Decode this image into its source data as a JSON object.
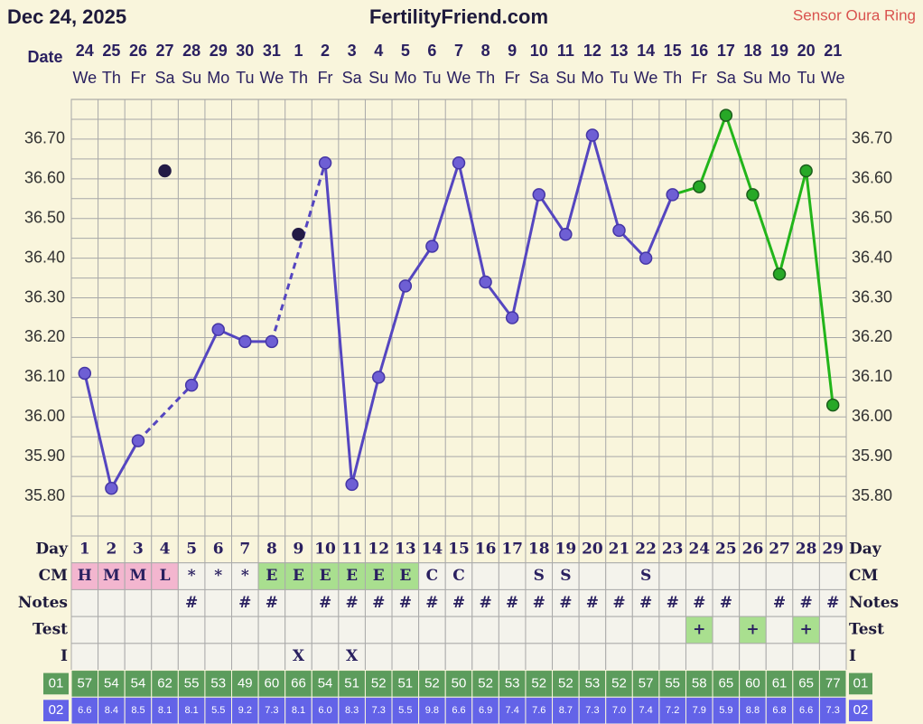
{
  "chart_data": {
    "type": "line",
    "date_label": "Dec 24, 2025",
    "title": "FertilityFriend.com",
    "source": "Sensor Oura Ring",
    "x_label": "Date",
    "categories": [
      "24",
      "25",
      "26",
      "27",
      "28",
      "29",
      "30",
      "31",
      "1",
      "2",
      "3",
      "4",
      "5",
      "6",
      "7",
      "8",
      "9",
      "10",
      "11",
      "12",
      "13",
      "14",
      "15",
      "16",
      "17",
      "18",
      "19",
      "20",
      "21"
    ],
    "weekdays": [
      "We",
      "Th",
      "Fr",
      "Sa",
      "Su",
      "Mo",
      "Tu",
      "We",
      "Th",
      "Fr",
      "Sa",
      "Su",
      "Mo",
      "Tu",
      "We",
      "Th",
      "Fr",
      "Sa",
      "Su",
      "Mo",
      "Tu",
      "We",
      "Th",
      "Fr",
      "Sa",
      "Su",
      "Mo",
      "Tu",
      "We"
    ],
    "ylim": [
      35.7,
      36.8
    ],
    "yticks": [
      {
        "value": 35.8,
        "label": "35.80"
      },
      {
        "value": 35.9,
        "label": "35.90"
      },
      {
        "value": 36.0,
        "label": "36.00"
      },
      {
        "value": 36.1,
        "label": "36.10"
      },
      {
        "value": 36.2,
        "label": "36.20"
      },
      {
        "value": 36.3,
        "label": "36.30"
      },
      {
        "value": 36.4,
        "label": "36.40"
      },
      {
        "value": 36.5,
        "label": "36.50"
      },
      {
        "value": 36.6,
        "label": "36.60"
      },
      {
        "value": 36.7,
        "label": "36.70"
      }
    ],
    "grid": true,
    "series": [
      {
        "color": "#5546c0",
        "marker_fill": "#6e5fd4",
        "marker_stroke": "#4536a6",
        "line": true,
        "gap_style": "dashed",
        "values": [
          36.11,
          35.82,
          35.94,
          null,
          36.08,
          36.22,
          36.19,
          36.19,
          null,
          36.64,
          35.83,
          36.1,
          36.33,
          36.43,
          36.64,
          36.34,
          36.25,
          36.56,
          36.46,
          36.71,
          36.47,
          36.4,
          36.56,
          null,
          null,
          null,
          null,
          null,
          null
        ]
      },
      {
        "color": "#22b51a",
        "marker_fill": "#27a827",
        "marker_stroke": "#1b5e1b",
        "line": true,
        "connect_to_previous_series": true,
        "values": [
          null,
          null,
          null,
          null,
          null,
          null,
          null,
          null,
          null,
          null,
          null,
          null,
          null,
          null,
          null,
          null,
          null,
          null,
          null,
          null,
          null,
          null,
          null,
          36.58,
          36.76,
          36.56,
          36.36,
          36.62,
          36.03
        ]
      },
      {
        "color": "#231b46",
        "marker_fill": "#231b46",
        "marker_stroke": "#231b46",
        "line": false,
        "values": [
          null,
          null,
          null,
          36.62,
          null,
          null,
          null,
          null,
          36.46,
          null,
          null,
          null,
          null,
          null,
          null,
          null,
          null,
          null,
          null,
          null,
          null,
          null,
          null,
          null,
          null,
          null,
          null,
          null,
          null
        ]
      }
    ],
    "table": {
      "rows": [
        {
          "label": "Day",
          "cells": [
            1,
            2,
            3,
            4,
            5,
            6,
            7,
            8,
            9,
            10,
            11,
            12,
            13,
            14,
            15,
            16,
            17,
            18,
            19,
            20,
            21,
            22,
            23,
            24,
            25,
            26,
            27,
            28,
            29
          ],
          "fill": "#f9f5dc"
        },
        {
          "label": "CM",
          "cells": [
            "H",
            "M",
            "M",
            "L",
            "*",
            "*",
            "*",
            "E",
            "E",
            "E",
            "E",
            "E",
            "E",
            "C",
            "C",
            null,
            null,
            "S",
            "S",
            null,
            null,
            "S",
            null,
            null,
            null,
            null,
            null,
            null,
            null
          ],
          "fill": "#f4f3ec",
          "cell_fills": {
            "H": "#f3b6cf",
            "M": "#f3b6cf",
            "L": "#f3b6cf",
            "E": "#a9df8f"
          }
        },
        {
          "label": "Notes",
          "cells": [
            null,
            null,
            null,
            null,
            "#",
            null,
            "#",
            "#",
            null,
            "#",
            "#",
            "#",
            "#",
            "#",
            "#",
            "#",
            "#",
            "#",
            "#",
            "#",
            "#",
            "#",
            "#",
            "#",
            "#",
            null,
            "#",
            "#",
            "#"
          ],
          "fill": "#f4f3ec"
        },
        {
          "label": "Test",
          "cells": [
            null,
            null,
            null,
            null,
            null,
            null,
            null,
            null,
            null,
            null,
            null,
            null,
            null,
            null,
            null,
            null,
            null,
            null,
            null,
            null,
            null,
            null,
            null,
            "+",
            null,
            "+",
            null,
            "+",
            null
          ],
          "fill": "#f4f3ec",
          "cell_fills": {
            "+": "#a9df8f"
          }
        },
        {
          "label": "I",
          "cells": [
            null,
            null,
            null,
            null,
            null,
            null,
            null,
            null,
            "X",
            null,
            "X",
            null,
            null,
            null,
            null,
            null,
            null,
            null,
            null,
            null,
            null,
            null,
            null,
            null,
            null,
            null,
            null,
            null,
            null
          ],
          "fill": "#f4f3ec"
        },
        {
          "label": "01",
          "cells": [
            57,
            54,
            54,
            62,
            55,
            53,
            49,
            60,
            66,
            54,
            51,
            52,
            51,
            52,
            50,
            52,
            53,
            52,
            52,
            53,
            52,
            57,
            55,
            58,
            65,
            60,
            61,
            65,
            77
          ],
          "fill": "#5c9c5c",
          "text_color": "#ffffff",
          "label_box": true
        },
        {
          "label": "02",
          "cells": [
            "6.6",
            "8.4",
            "8.5",
            "8.1",
            "8.1",
            "5.5",
            "9.2",
            "7.3",
            "8.1",
            "6.0",
            "8.3",
            "7.3",
            "5.5",
            "9.8",
            "6.6",
            "6.9",
            "7.4",
            "7.6",
            "8.7",
            "7.3",
            "7.0",
            "7.4",
            "7.2",
            "7.9",
            "5.9",
            "8.8",
            "6.8",
            "6.6",
            "7.3"
          ],
          "fill": "#6363e8",
          "text_color": "#ffffff",
          "label_box": true,
          "small": true
        }
      ]
    }
  }
}
